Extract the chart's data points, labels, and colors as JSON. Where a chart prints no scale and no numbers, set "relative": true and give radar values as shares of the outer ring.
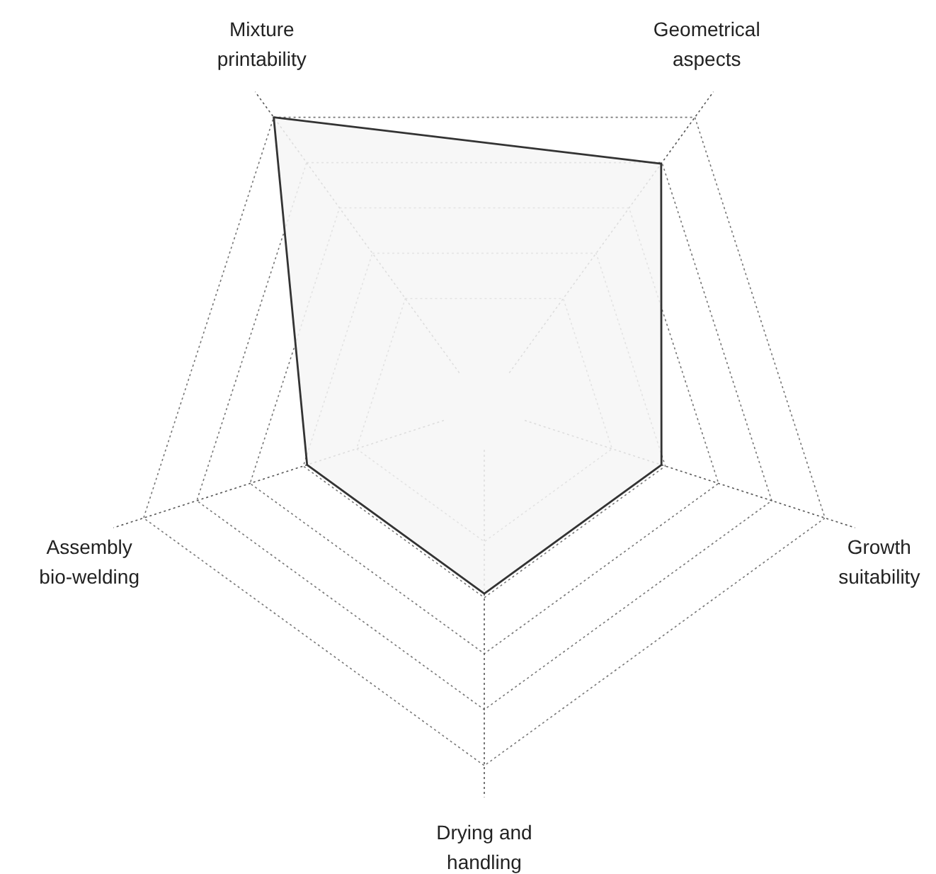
{
  "chart_data": {
    "type": "radar",
    "relative": true,
    "categories": [
      "Mixture printability",
      "Geometrical aspects",
      "Growth suitability",
      "Drying and handling",
      "Assembly bio-welding"
    ],
    "series": [
      {
        "color": "#333333",
        "values": [
          1,
          0.84,
          0.52,
          0.52,
          0.52
        ]
      }
    ]
  }
}
